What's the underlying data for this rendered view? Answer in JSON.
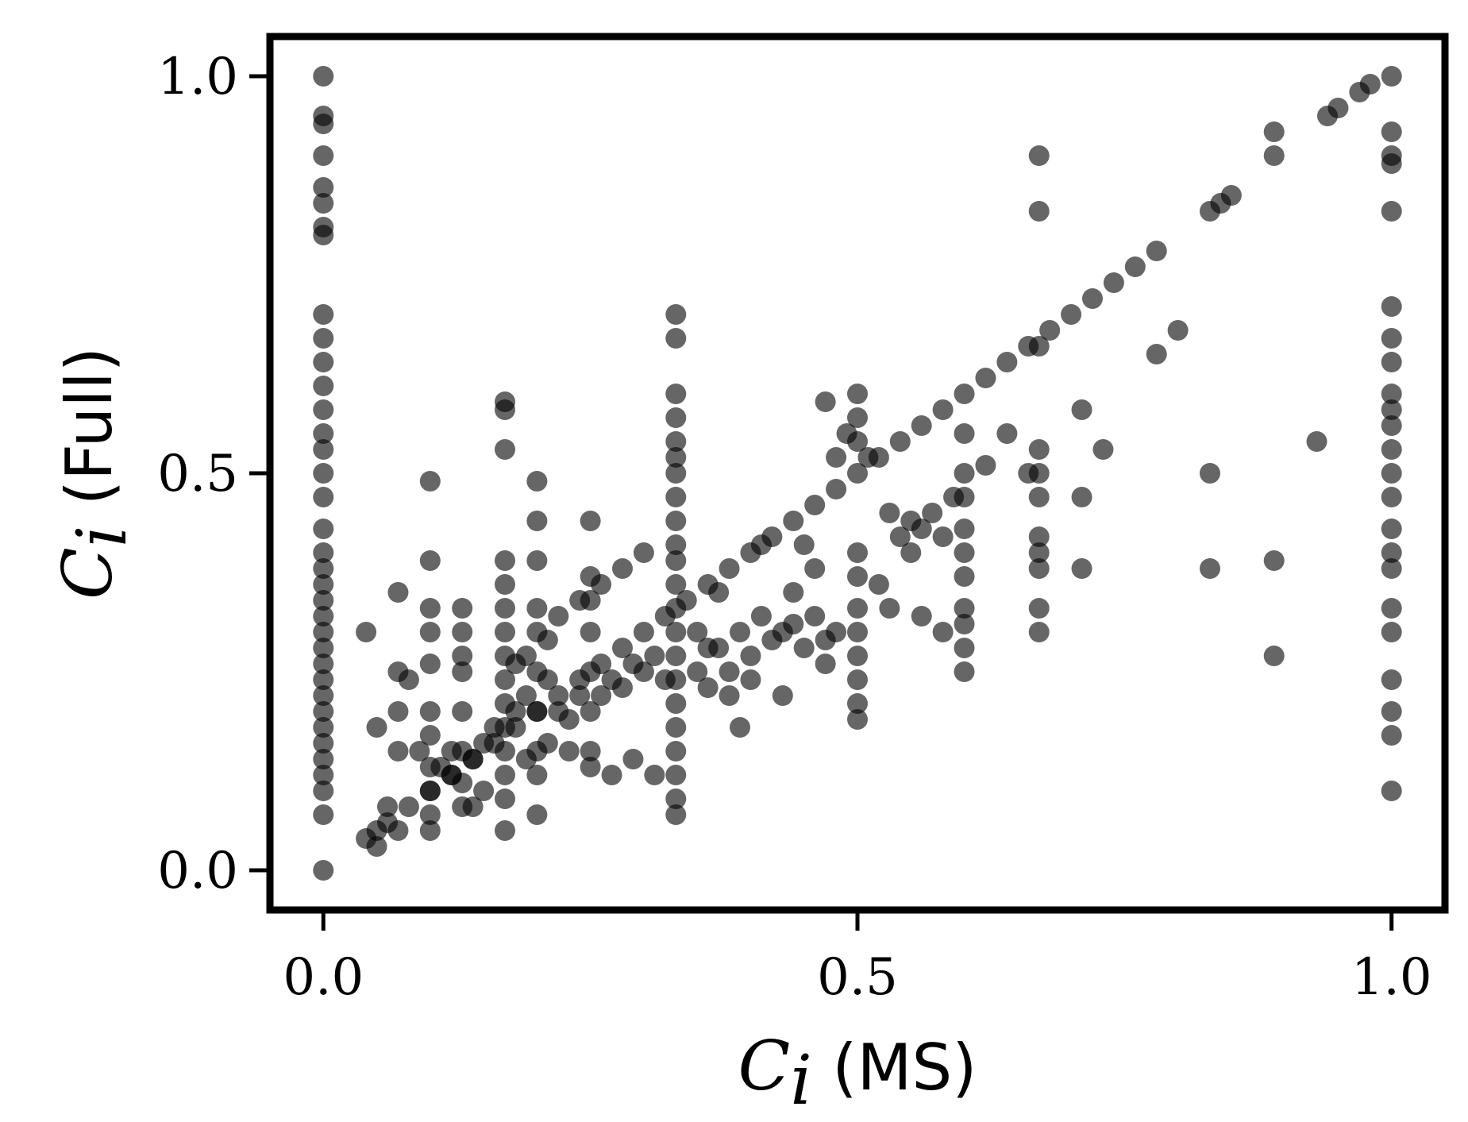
{
  "chart_data": {
    "type": "scatter",
    "title": "",
    "xlabel": {
      "symbol": "C",
      "subscript": "i",
      "text": " (MS)"
    },
    "ylabel": {
      "symbol": "C",
      "subscript": "i",
      "text": " (Full)"
    },
    "xlim": [
      -0.05,
      1.05
    ],
    "ylim": [
      -0.05,
      1.05
    ],
    "xticks": [
      0.0,
      0.5,
      1.0
    ],
    "xtick_labels": [
      "0.0",
      "0.5",
      "1.0"
    ],
    "yticks": [
      0.0,
      0.5,
      1.0
    ],
    "ytick_labels": [
      "0.0",
      "0.5",
      "1.0"
    ],
    "grid": false,
    "legend": "none",
    "point_color": "#000000",
    "point_opacity": 0.6,
    "series": [
      {
        "points": [
          [
            0.0,
            1.0
          ],
          [
            0.0,
            0.95
          ],
          [
            0.0,
            0.94
          ],
          [
            0.0,
            0.9
          ],
          [
            0.0,
            0.86
          ],
          [
            0.0,
            0.84
          ],
          [
            0.0,
            0.81
          ],
          [
            0.0,
            0.8
          ],
          [
            0.0,
            0.7
          ],
          [
            0.0,
            0.67
          ],
          [
            0.0,
            0.64
          ],
          [
            0.0,
            0.61
          ],
          [
            0.0,
            0.58
          ],
          [
            0.0,
            0.55
          ],
          [
            0.0,
            0.53
          ],
          [
            0.0,
            0.5
          ],
          [
            0.0,
            0.47
          ],
          [
            0.0,
            0.43
          ],
          [
            0.0,
            0.4
          ],
          [
            0.0,
            0.38
          ],
          [
            0.0,
            0.36
          ],
          [
            0.0,
            0.34
          ],
          [
            0.0,
            0.32
          ],
          [
            0.0,
            0.3
          ],
          [
            0.0,
            0.28
          ],
          [
            0.0,
            0.26
          ],
          [
            0.0,
            0.24
          ],
          [
            0.0,
            0.22
          ],
          [
            0.0,
            0.2
          ],
          [
            0.0,
            0.18
          ],
          [
            0.0,
            0.16
          ],
          [
            0.0,
            0.14
          ],
          [
            0.0,
            0.12
          ],
          [
            0.0,
            0.1
          ],
          [
            0.0,
            0.07
          ],
          [
            0.0,
            0.0
          ],
          [
            0.33,
            0.7
          ],
          [
            0.33,
            0.67
          ],
          [
            0.33,
            0.6
          ],
          [
            0.33,
            0.57
          ],
          [
            0.33,
            0.54
          ],
          [
            0.33,
            0.52
          ],
          [
            0.33,
            0.5
          ],
          [
            0.33,
            0.47
          ],
          [
            0.33,
            0.44
          ],
          [
            0.33,
            0.41
          ],
          [
            0.33,
            0.39
          ],
          [
            0.33,
            0.36
          ],
          [
            0.33,
            0.33
          ],
          [
            0.33,
            0.3
          ],
          [
            0.33,
            0.27
          ],
          [
            0.33,
            0.24
          ],
          [
            0.33,
            0.21
          ],
          [
            0.33,
            0.18
          ],
          [
            0.33,
            0.15
          ],
          [
            0.33,
            0.12
          ],
          [
            0.33,
            0.09
          ],
          [
            0.33,
            0.07
          ],
          [
            0.17,
            0.59
          ],
          [
            0.17,
            0.58
          ],
          [
            0.17,
            0.53
          ],
          [
            0.17,
            0.39
          ],
          [
            0.17,
            0.36
          ],
          [
            0.17,
            0.33
          ],
          [
            0.17,
            0.3
          ],
          [
            0.17,
            0.27
          ],
          [
            0.17,
            0.24
          ],
          [
            0.17,
            0.21
          ],
          [
            0.17,
            0.18
          ],
          [
            0.17,
            0.15
          ],
          [
            0.17,
            0.12
          ],
          [
            0.17,
            0.09
          ],
          [
            0.17,
            0.05
          ],
          [
            0.5,
            0.6
          ],
          [
            0.5,
            0.57
          ],
          [
            0.5,
            0.54
          ],
          [
            0.5,
            0.4
          ],
          [
            0.5,
            0.37
          ],
          [
            0.5,
            0.33
          ],
          [
            0.5,
            0.3
          ],
          [
            0.5,
            0.27
          ],
          [
            0.5,
            0.24
          ],
          [
            0.5,
            0.21
          ],
          [
            0.5,
            0.19
          ],
          [
            0.67,
            0.9
          ],
          [
            0.67,
            0.83
          ],
          [
            0.67,
            0.66
          ],
          [
            0.67,
            0.53
          ],
          [
            0.67,
            0.5
          ],
          [
            0.67,
            0.47
          ],
          [
            0.67,
            0.42
          ],
          [
            0.67,
            0.4
          ],
          [
            0.67,
            0.38
          ],
          [
            0.67,
            0.33
          ],
          [
            0.67,
            0.3
          ],
          [
            1.0,
            1.0
          ],
          [
            1.0,
            0.93
          ],
          [
            1.0,
            0.9
          ],
          [
            1.0,
            0.89
          ],
          [
            1.0,
            0.83
          ],
          [
            1.0,
            0.71
          ],
          [
            1.0,
            0.67
          ],
          [
            1.0,
            0.64
          ],
          [
            1.0,
            0.6
          ],
          [
            1.0,
            0.58
          ],
          [
            1.0,
            0.56
          ],
          [
            1.0,
            0.53
          ],
          [
            1.0,
            0.5
          ],
          [
            1.0,
            0.47
          ],
          [
            1.0,
            0.43
          ],
          [
            1.0,
            0.4
          ],
          [
            1.0,
            0.38
          ],
          [
            1.0,
            0.33
          ],
          [
            1.0,
            0.3
          ],
          [
            1.0,
            0.24
          ],
          [
            1.0,
            0.2
          ],
          [
            1.0,
            0.17
          ],
          [
            1.0,
            0.1
          ],
          [
            0.1,
            0.49
          ],
          [
            0.1,
            0.39
          ],
          [
            0.1,
            0.33
          ],
          [
            0.1,
            0.3
          ],
          [
            0.1,
            0.26
          ],
          [
            0.1,
            0.2
          ],
          [
            0.1,
            0.17
          ],
          [
            0.1,
            0.13
          ],
          [
            0.1,
            0.1
          ],
          [
            0.1,
            0.07
          ],
          [
            0.1,
            0.05
          ],
          [
            0.13,
            0.33
          ],
          [
            0.13,
            0.3
          ],
          [
            0.13,
            0.27
          ],
          [
            0.13,
            0.25
          ],
          [
            0.13,
            0.2
          ],
          [
            0.13,
            0.15
          ],
          [
            0.13,
            0.11
          ],
          [
            0.13,
            0.08
          ],
          [
            0.2,
            0.49
          ],
          [
            0.2,
            0.44
          ],
          [
            0.2,
            0.39
          ],
          [
            0.2,
            0.33
          ],
          [
            0.2,
            0.3
          ],
          [
            0.2,
            0.25
          ],
          [
            0.2,
            0.2
          ],
          [
            0.2,
            0.15
          ],
          [
            0.2,
            0.12
          ],
          [
            0.2,
            0.07
          ],
          [
            0.25,
            0.44
          ],
          [
            0.25,
            0.37
          ],
          [
            0.25,
            0.34
          ],
          [
            0.25,
            0.3
          ],
          [
            0.25,
            0.25
          ],
          [
            0.25,
            0.2
          ],
          [
            0.25,
            0.15
          ],
          [
            0.6,
            0.55
          ],
          [
            0.6,
            0.5
          ],
          [
            0.6,
            0.47
          ],
          [
            0.6,
            0.43
          ],
          [
            0.6,
            0.4
          ],
          [
            0.6,
            0.37
          ],
          [
            0.6,
            0.33
          ],
          [
            0.6,
            0.31
          ],
          [
            0.6,
            0.28
          ],
          [
            0.6,
            0.25
          ],
          [
            0.83,
            0.83
          ],
          [
            0.84,
            0.84
          ],
          [
            0.85,
            0.85
          ],
          [
            0.83,
            0.5
          ],
          [
            0.83,
            0.38
          ],
          [
            0.89,
            0.93
          ],
          [
            0.89,
            0.9
          ],
          [
            0.89,
            0.39
          ],
          [
            0.89,
            0.27
          ],
          [
            0.93,
            0.54
          ],
          [
            0.94,
            0.95
          ],
          [
            0.95,
            0.96
          ],
          [
            0.97,
            0.98
          ],
          [
            0.98,
            0.99
          ],
          [
            0.71,
            0.58
          ],
          [
            0.71,
            0.47
          ],
          [
            0.71,
            0.38
          ],
          [
            0.73,
            0.53
          ],
          [
            0.8,
            0.68
          ],
          [
            0.78,
            0.65
          ],
          [
            0.62,
            0.51
          ],
          [
            0.64,
            0.55
          ],
          [
            0.66,
            0.5
          ],
          [
            0.04,
            0.3
          ],
          [
            0.05,
            0.05
          ],
          [
            0.05,
            0.03
          ],
          [
            0.05,
            0.18
          ],
          [
            0.06,
            0.08
          ],
          [
            0.07,
            0.35
          ],
          [
            0.07,
            0.25
          ],
          [
            0.07,
            0.2
          ],
          [
            0.07,
            0.15
          ],
          [
            0.07,
            0.05
          ],
          [
            0.08,
            0.24
          ],
          [
            0.09,
            0.15
          ],
          [
            0.11,
            0.13
          ],
          [
            0.12,
            0.12
          ],
          [
            0.14,
            0.14
          ],
          [
            0.15,
            0.16
          ],
          [
            0.16,
            0.18
          ],
          [
            0.18,
            0.2
          ],
          [
            0.19,
            0.22
          ],
          [
            0.21,
            0.24
          ],
          [
            0.22,
            0.2
          ],
          [
            0.23,
            0.19
          ],
          [
            0.24,
            0.22
          ],
          [
            0.26,
            0.22
          ],
          [
            0.27,
            0.24
          ],
          [
            0.28,
            0.23
          ],
          [
            0.29,
            0.26
          ],
          [
            0.3,
            0.25
          ],
          [
            0.31,
            0.27
          ],
          [
            0.32,
            0.24
          ],
          [
            0.35,
            0.25
          ],
          [
            0.36,
            0.23
          ],
          [
            0.37,
            0.28
          ],
          [
            0.38,
            0.25
          ],
          [
            0.39,
            0.3
          ],
          [
            0.4,
            0.27
          ],
          [
            0.41,
            0.32
          ],
          [
            0.42,
            0.29
          ],
          [
            0.43,
            0.3
          ],
          [
            0.44,
            0.31
          ],
          [
            0.45,
            0.28
          ],
          [
            0.46,
            0.32
          ],
          [
            0.47,
            0.29
          ],
          [
            0.48,
            0.3
          ],
          [
            0.52,
            0.36
          ],
          [
            0.53,
            0.33
          ],
          [
            0.54,
            0.42
          ],
          [
            0.55,
            0.4
          ],
          [
            0.56,
            0.43
          ],
          [
            0.57,
            0.45
          ],
          [
            0.58,
            0.42
          ],
          [
            0.59,
            0.47
          ],
          [
            0.3,
            0.4
          ],
          [
            0.28,
            0.38
          ],
          [
            0.26,
            0.36
          ],
          [
            0.24,
            0.34
          ],
          [
            0.22,
            0.32
          ],
          [
            0.21,
            0.29
          ],
          [
            0.19,
            0.27
          ],
          [
            0.18,
            0.26
          ],
          [
            0.39,
            0.18
          ],
          [
            0.43,
            0.22
          ],
          [
            0.47,
            0.26
          ],
          [
            0.48,
            0.52
          ],
          [
            0.47,
            0.59
          ],
          [
            0.49,
            0.55
          ],
          [
            0.45,
            0.41
          ],
          [
            0.46,
            0.38
          ],
          [
            0.41,
            0.41
          ],
          [
            0.44,
            0.35
          ],
          [
            0.51,
            0.52
          ],
          [
            0.53,
            0.45
          ],
          [
            0.55,
            0.44
          ],
          [
            0.56,
            0.32
          ],
          [
            0.58,
            0.3
          ],
          [
            0.35,
            0.3
          ],
          [
            0.37,
            0.35
          ],
          [
            0.36,
            0.28
          ],
          [
            0.38,
            0.22
          ],
          [
            0.4,
            0.24
          ],
          [
            0.27,
            0.12
          ],
          [
            0.29,
            0.14
          ],
          [
            0.31,
            0.12
          ],
          [
            0.23,
            0.15
          ],
          [
            0.25,
            0.13
          ],
          [
            0.19,
            0.14
          ],
          [
            0.21,
            0.16
          ],
          [
            0.15,
            0.1
          ],
          [
            0.14,
            0.08
          ],
          [
            0.12,
            0.15
          ]
        ]
      },
      {
        "points": [
          [
            0.04,
            0.04
          ],
          [
            0.06,
            0.06
          ],
          [
            0.08,
            0.08
          ],
          [
            0.1,
            0.1
          ],
          [
            0.12,
            0.12
          ],
          [
            0.14,
            0.14
          ],
          [
            0.16,
            0.16
          ],
          [
            0.18,
            0.18
          ],
          [
            0.2,
            0.2
          ],
          [
            0.22,
            0.22
          ],
          [
            0.24,
            0.24
          ],
          [
            0.26,
            0.26
          ],
          [
            0.28,
            0.28
          ],
          [
            0.3,
            0.3
          ],
          [
            0.32,
            0.32
          ],
          [
            0.34,
            0.34
          ],
          [
            0.36,
            0.36
          ],
          [
            0.38,
            0.38
          ],
          [
            0.4,
            0.4
          ],
          [
            0.42,
            0.42
          ],
          [
            0.44,
            0.44
          ],
          [
            0.46,
            0.46
          ],
          [
            0.48,
            0.48
          ],
          [
            0.5,
            0.5
          ],
          [
            0.52,
            0.52
          ],
          [
            0.54,
            0.54
          ],
          [
            0.56,
            0.56
          ],
          [
            0.58,
            0.58
          ],
          [
            0.6,
            0.6
          ],
          [
            0.62,
            0.62
          ],
          [
            0.64,
            0.64
          ],
          [
            0.66,
            0.66
          ],
          [
            0.68,
            0.68
          ],
          [
            0.7,
            0.7
          ],
          [
            0.72,
            0.72
          ],
          [
            0.74,
            0.74
          ],
          [
            0.76,
            0.76
          ],
          [
            0.78,
            0.78
          ]
        ]
      }
    ]
  }
}
